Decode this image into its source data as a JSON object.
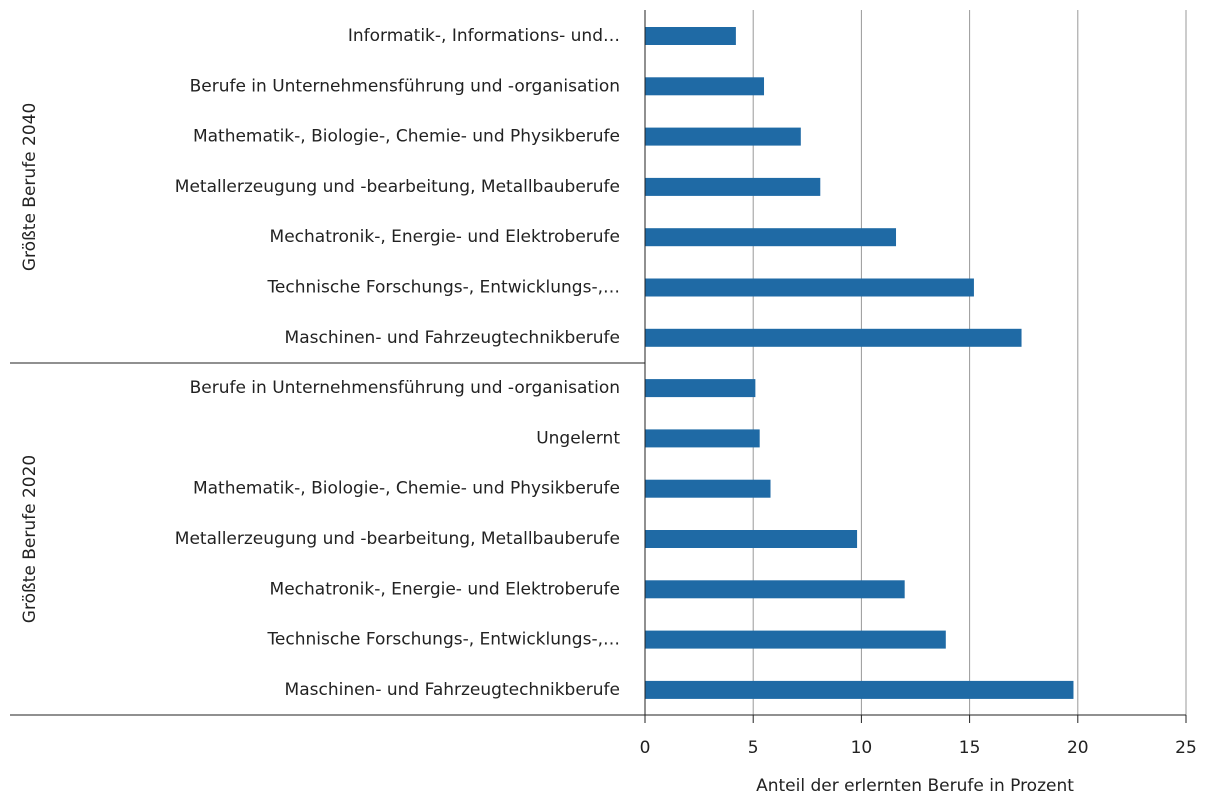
{
  "chart_data": {
    "type": "bar",
    "orientation": "horizontal",
    "xlabel": "Anteil der erlernten  Berufe in Prozent",
    "color": "#1f6aa5",
    "groups": [
      {
        "name": "Größte Berufe 2040",
        "categories": [
          "Informatik-, Informations- und…",
          "Berufe in Unternehmensführung und -organisation",
          "Mathematik-, Biologie-, Chemie- und Physikberufe",
          "Metallerzeugung und -bearbeitung, Metallbauberufe",
          "Mechatronik-, Energie- und Elektroberufe",
          "Technische Forschungs-, Entwicklungs-,…",
          "Maschinen- und Fahrzeugtechnikberufe"
        ],
        "values": [
          4.2,
          5.5,
          7.2,
          8.1,
          11.6,
          15.2,
          17.4
        ]
      },
      {
        "name": "Größte Berufe 2020",
        "categories": [
          "Berufe in Unternehmensführung und -organisation",
          "Ungelernt",
          "Mathematik-, Biologie-, Chemie- und Physikberufe",
          "Metallerzeugung und -bearbeitung, Metallbauberufe",
          "Mechatronik-, Energie- und Elektroberufe",
          "Technische Forschungs-, Entwicklungs-,…",
          "Maschinen- und Fahrzeugtechnikberufe"
        ],
        "values": [
          5.1,
          5.3,
          5.8,
          9.8,
          12.0,
          13.9,
          19.8
        ]
      }
    ],
    "xlim": [
      0,
      25
    ],
    "xticks": [
      0,
      5,
      10,
      15,
      20,
      25
    ],
    "grid": true
  }
}
